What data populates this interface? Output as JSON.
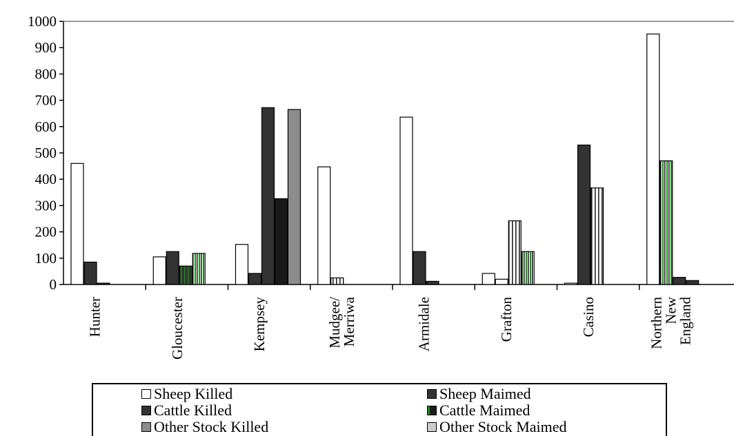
{
  "chart_data": {
    "type": "bar",
    "title": "",
    "xlabel": "",
    "ylabel": "",
    "ylim": [
      0,
      1000
    ],
    "yticks": [
      0,
      100,
      200,
      300,
      400,
      500,
      600,
      700,
      800,
      900,
      1000
    ],
    "categories": [
      [
        "Hunter"
      ],
      [
        "Gloucester"
      ],
      [
        "Kempsey"
      ],
      [
        "Mudgee/",
        "Merriwa"
      ],
      [
        "Armidale"
      ],
      [
        "Grafton"
      ],
      [
        "Casino"
      ],
      [
        "Northern",
        "New",
        "England"
      ]
    ],
    "series": [
      {
        "name": "Sheep Killed",
        "values": [
          460,
          105,
          152,
          447,
          636,
          42,
          5,
          952
        ]
      },
      {
        "name": "Sheep Maimed",
        "values": [
          85,
          125,
          42,
          25,
          125,
          20,
          0,
          27
        ]
      },
      {
        "name": "Cattle Killed",
        "values": [
          5,
          70,
          672,
          28,
          12,
          242,
          530,
          470
        ]
      },
      {
        "name": "Cattle Maimed",
        "values": [
          0,
          118,
          326,
          0,
          0,
          125,
          0,
          15
        ]
      },
      {
        "name": "Other Stock Killed",
        "values": [
          0,
          0,
          665,
          0,
          0,
          0,
          367,
          0
        ]
      },
      {
        "name": "Other Stock Maimed",
        "values": [
          0,
          0,
          0,
          0,
          0,
          0,
          0,
          0
        ]
      }
    ],
    "legend_position": "bottom",
    "grid": false
  },
  "legend": {
    "items": [
      {
        "label": "Sheep Killed",
        "color": "#ffffff"
      },
      {
        "label": "Sheep Maimed",
        "color": "#333333"
      },
      {
        "label": "Cattle Killed",
        "color": "#333333"
      },
      {
        "label": "Cattle Maimed",
        "color": "#1a1a1a"
      },
      {
        "label": "Other Stock Killed",
        "color": "#8c8c8c"
      },
      {
        "label": "Other Stock Maimed",
        "color": "#cccccc"
      }
    ]
  },
  "bar_styles": {
    "groups": [
      [
        "white",
        "dark",
        "dark"
      ],
      [
        "white",
        "dark",
        "dark-green",
        "green-stripes"
      ],
      [
        "white",
        "dark",
        "dark",
        "black",
        "gray"
      ],
      [
        "white",
        "white-stripes"
      ],
      [
        "white",
        "dark",
        "dark"
      ],
      [
        "white",
        "white",
        "white-stripes",
        "green-stripes"
      ],
      [
        "white",
        "dark",
        "white-stripes"
      ],
      [
        "white",
        "green-stripes",
        "dark",
        "dark"
      ]
    ],
    "groups_values": [
      [
        460,
        85,
        5
      ],
      [
        105,
        125,
        70,
        118
      ],
      [
        152,
        42,
        672,
        326,
        665
      ],
      [
        447,
        25
      ],
      [
        636,
        125,
        12
      ],
      [
        42,
        20,
        242,
        125
      ],
      [
        5,
        530,
        367
      ],
      [
        952,
        470,
        27,
        15
      ]
    ]
  }
}
